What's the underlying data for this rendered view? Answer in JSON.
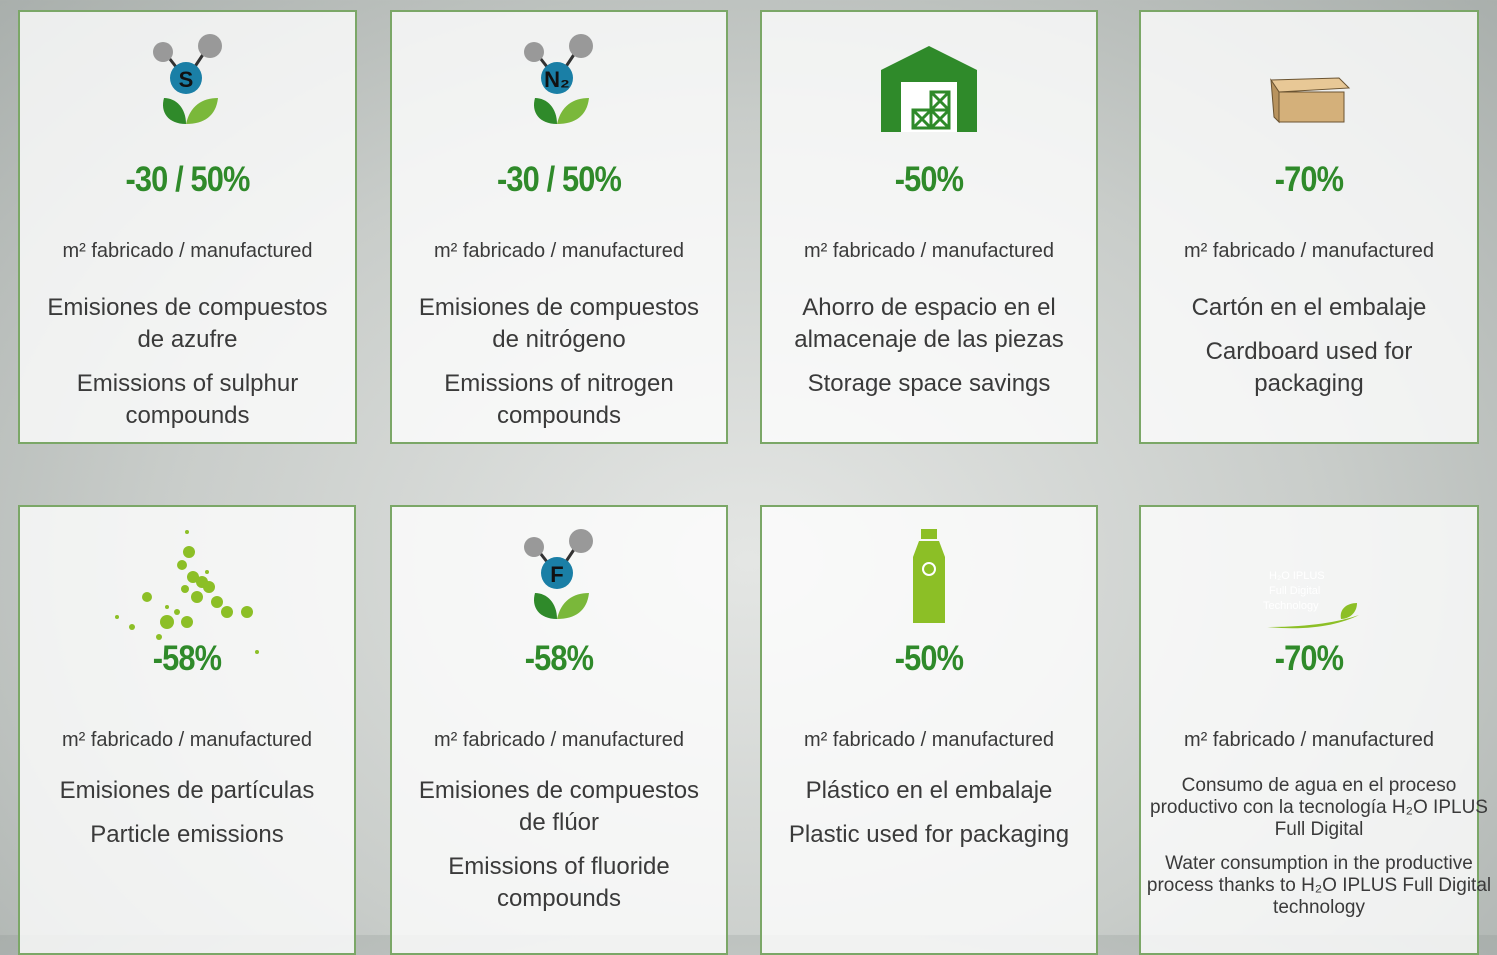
{
  "cards": [
    {
      "icon_label": "S",
      "value": "-30 / 50%",
      "unit": "m²  fabricado / manufactured",
      "es": "Emisiones de compuestos de azufre",
      "en": "Emissions of sulphur compounds"
    },
    {
      "icon_label": "N₂",
      "value": "-30 / 50%",
      "unit": "m²  fabricado / manufactured",
      "es": "Emisiones de compuestos de nitrógeno",
      "en": "Emissions of nitrogen compounds"
    },
    {
      "value": "-50%",
      "unit": "m²  fabricado / manufactured",
      "es": "Ahorro de espacio en el almacenaje de las piezas",
      "en": "Storage space savings"
    },
    {
      "value": "-70%",
      "unit": "m²  fabricado / manufactured",
      "es": "Cartón en el embalaje",
      "en": "Cardboard used for packaging"
    },
    {
      "value": "-58%",
      "unit": "m²  fabricado / manufactured",
      "es": "Emisiones de partículas",
      "en": "Particle emissions"
    },
    {
      "icon_label": "F",
      "value": "-58%",
      "unit": "m²  fabricado / manufactured",
      "es": "Emisiones de compuestos de flúor",
      "en": "Emissions of fluoride compounds"
    },
    {
      "value": "-50%",
      "unit": "m²  fabricado / manufactured",
      "es": "Plástico en el embalaje",
      "en": "Plastic used for packaging"
    },
    {
      "icon_label": [
        "H₂O IPLUS",
        "Full Digital",
        "Technology"
      ],
      "value": "-70%",
      "unit": "m²  fabricado / manufactured",
      "es": "Consumo de  agua en el proceso productivo con la tecnología H₂O IPLUS Full Digital",
      "en": "Water consumption in the productive process thanks to H₂O IPLUS Full Digital technology"
    }
  ]
}
